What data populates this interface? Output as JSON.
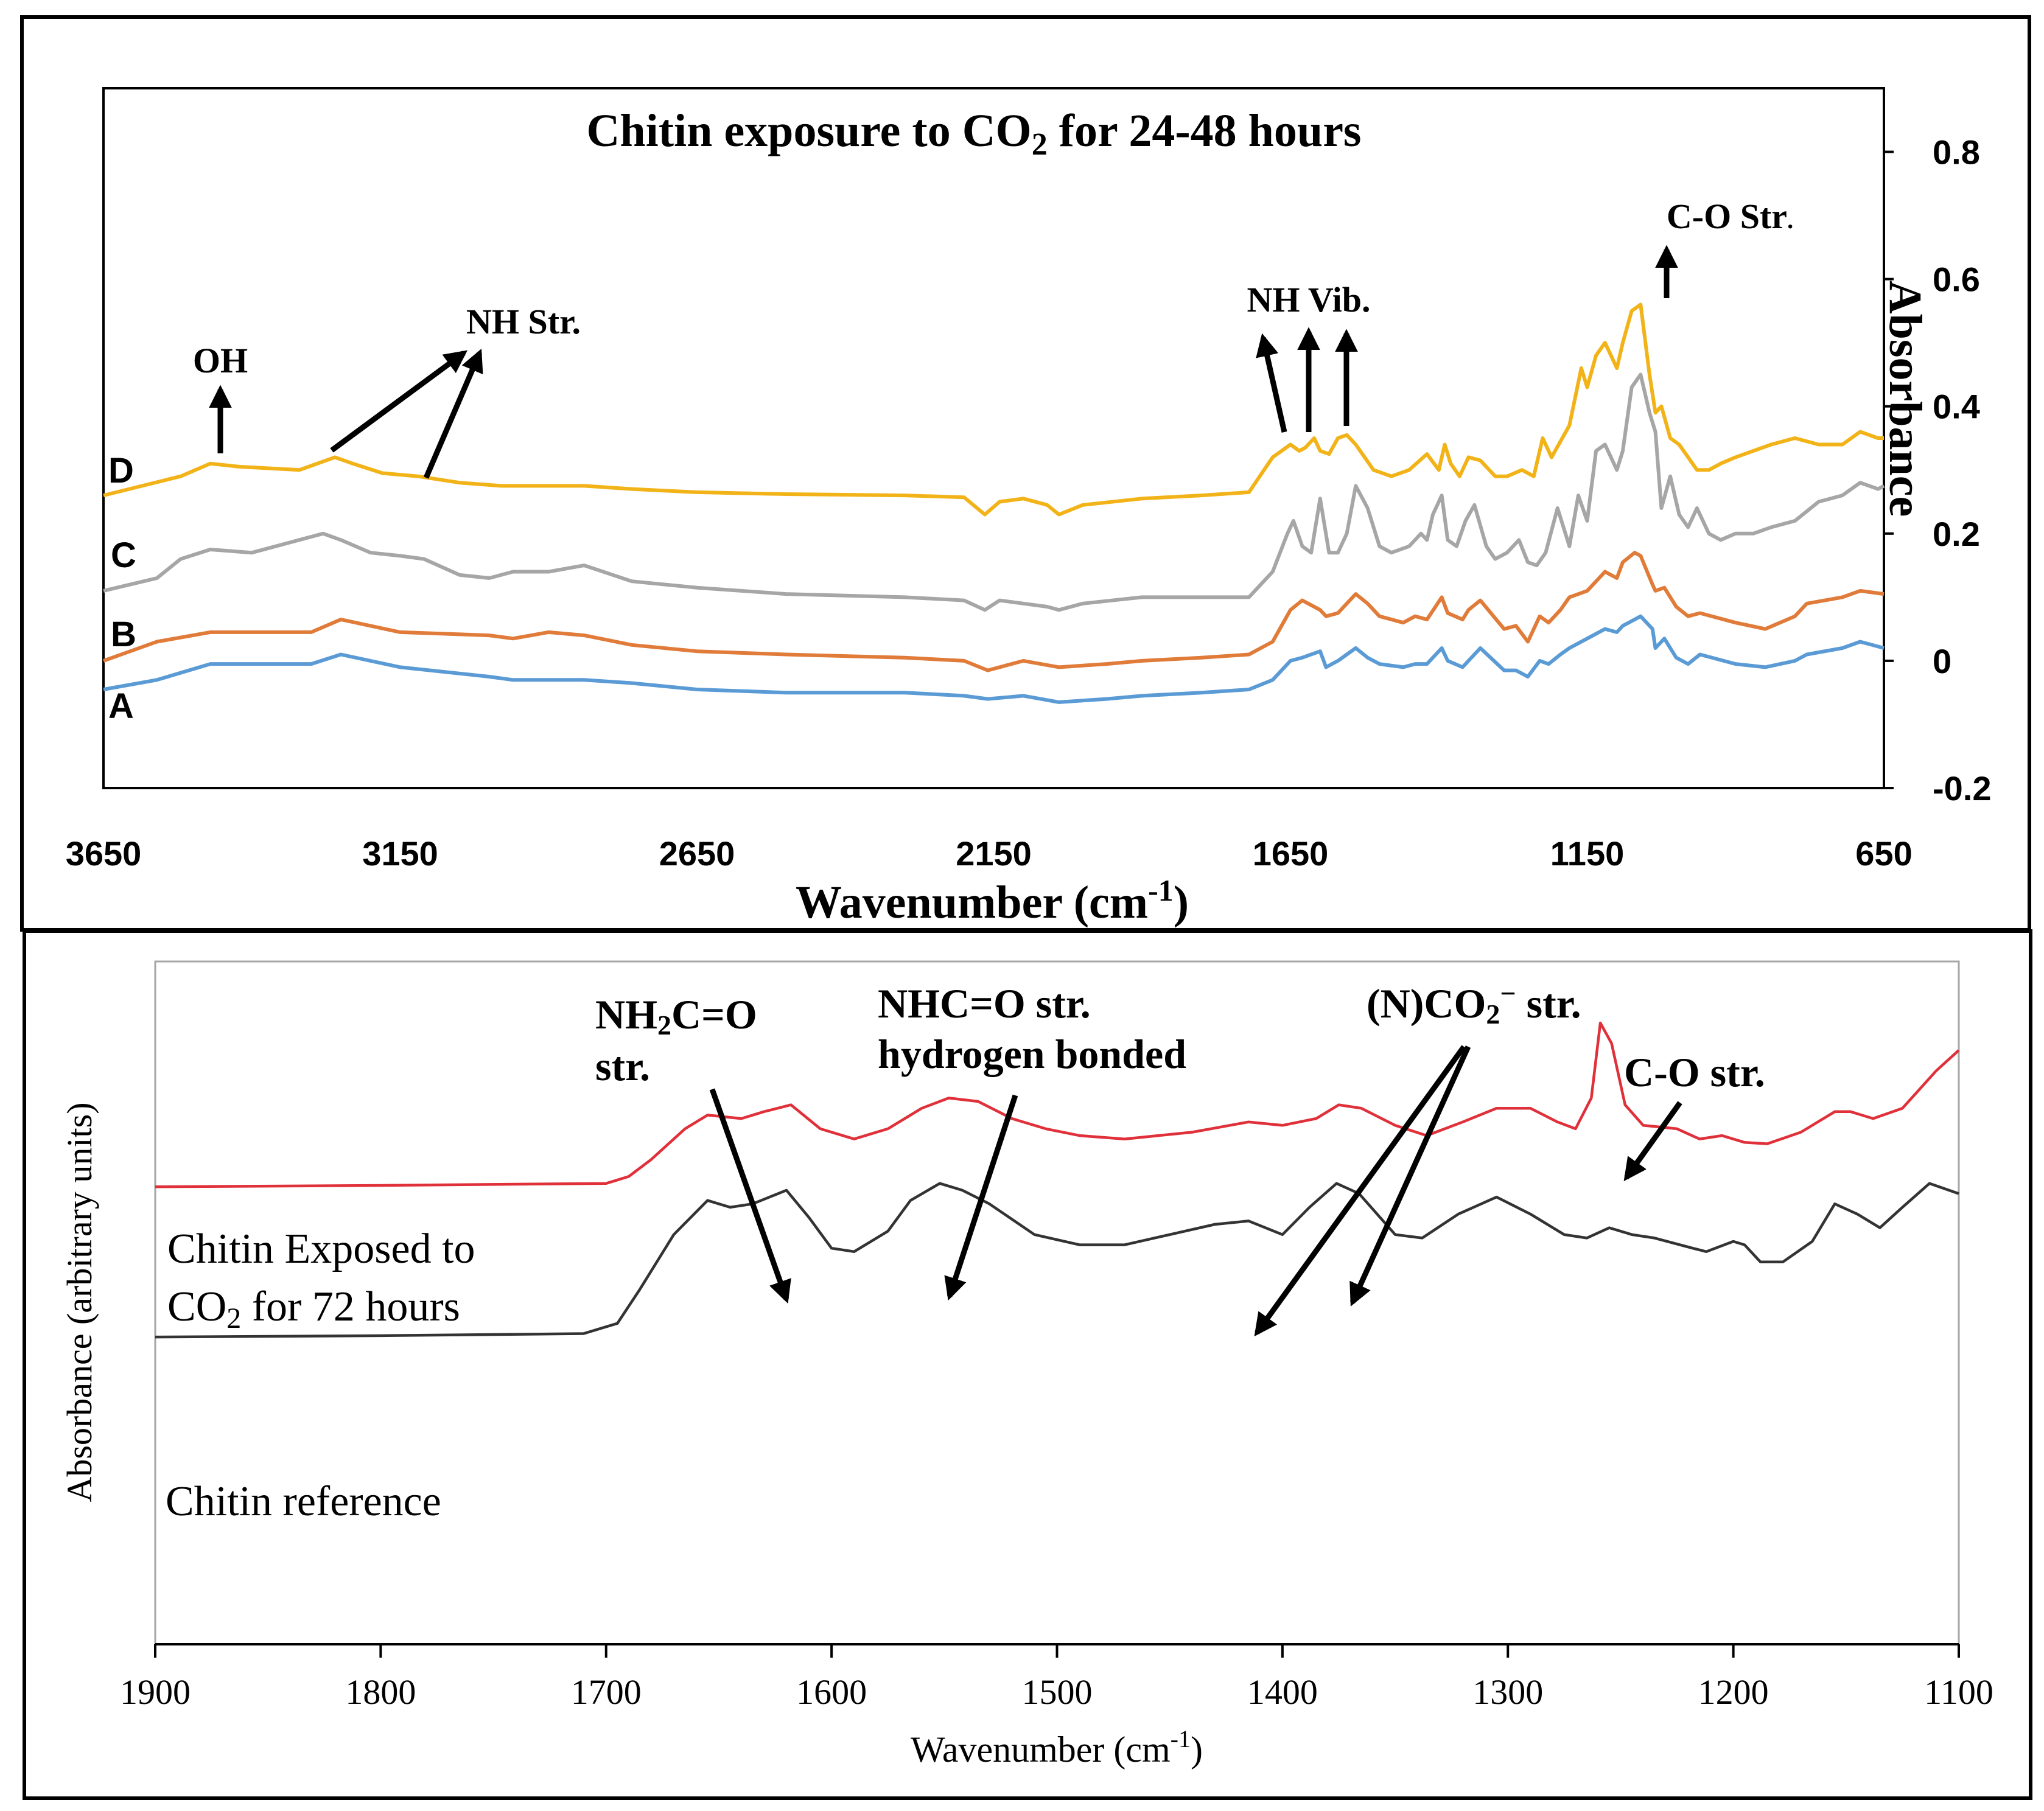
{
  "chart_data": [
    {
      "type": "line",
      "title_main": "Chitin exposure to CO",
      "title_sub": "2",
      "title_tail": " for 24-48 hours",
      "xlabel_main": "Wavenumber  (cm",
      "xlabel_sup": "-1",
      "xlabel_tail": ")",
      "ylabel": "Absorbance",
      "xlim": [
        3650,
        650
      ],
      "ylim": [
        -0.2,
        0.9
      ],
      "x_ticks": [
        "3650",
        "3150",
        "2650",
        "2150",
        "1650",
        "1150",
        "650"
      ],
      "y_ticks": [
        "0.8",
        "0.6",
        "0.4",
        "0.2",
        "0",
        "-0.2"
      ],
      "x_tick_values": [
        3650,
        3150,
        2650,
        2150,
        1650,
        1150,
        650
      ],
      "y_tick_values": [
        0.8,
        0.6,
        0.4,
        0.2,
        0,
        -0.2
      ],
      "annotations": [
        {
          "text": "OH",
          "x": 3465,
          "y": 0.425
        },
        {
          "text": "NH Str.",
          "x": 3010,
          "y": 0.535
        },
        {
          "text": "NH Vib.",
          "x": 1560,
          "y": 0.555
        },
        {
          "text": "C-O Str",
          "x": 1085,
          "y": 0.7
        },
        {
          "text": ".",
          "x": 975,
          "y": 0.7
        }
      ],
      "series": [
        {
          "name": "D",
          "color": "#F2B318",
          "x": [
            3650,
            3520,
            3470,
            3420,
            3320,
            3260,
            3230,
            3180,
            3120,
            3050,
            2980,
            2900,
            2840,
            2760,
            2650,
            2500,
            2300,
            2200,
            2165,
            2140,
            2100,
            2060,
            2040,
            2000,
            1900,
            1800,
            1720,
            1680,
            1650,
            1635,
            1625,
            1610,
            1600,
            1585,
            1570,
            1555,
            1540,
            1510,
            1480,
            1450,
            1420,
            1400,
            1390,
            1380,
            1365,
            1350,
            1330,
            1305,
            1285,
            1260,
            1240,
            1225,
            1210,
            1180,
            1160,
            1150,
            1135,
            1120,
            1100,
            1090,
            1075,
            1060,
            1045,
            1035,
            1025,
            1010,
            995,
            980,
            965,
            945,
            925,
            900,
            870,
            840,
            800,
            760,
            720,
            690,
            660,
            650
          ],
          "y": [
            0.26,
            0.29,
            0.31,
            0.305,
            0.3,
            0.32,
            0.31,
            0.295,
            0.29,
            0.28,
            0.275,
            0.275,
            0.275,
            0.27,
            0.265,
            0.262,
            0.26,
            0.257,
            0.23,
            0.25,
            0.255,
            0.245,
            0.23,
            0.245,
            0.255,
            0.26,
            0.265,
            0.32,
            0.34,
            0.33,
            0.335,
            0.35,
            0.33,
            0.325,
            0.35,
            0.355,
            0.34,
            0.3,
            0.29,
            0.3,
            0.325,
            0.3,
            0.34,
            0.31,
            0.29,
            0.32,
            0.315,
            0.29,
            0.29,
            0.3,
            0.29,
            0.35,
            0.32,
            0.37,
            0.46,
            0.43,
            0.48,
            0.5,
            0.46,
            0.5,
            0.55,
            0.56,
            0.45,
            0.39,
            0.4,
            0.35,
            0.34,
            0.32,
            0.3,
            0.3,
            0.31,
            0.32,
            0.33,
            0.34,
            0.35,
            0.34,
            0.34,
            0.36,
            0.35,
            0.35
          ]
        },
        {
          "name": "C",
          "color": "#A6A6A6",
          "x": [
            3650,
            3560,
            3520,
            3470,
            3400,
            3280,
            3250,
            3200,
            3150,
            3110,
            3050,
            3000,
            2960,
            2900,
            2840,
            2760,
            2650,
            2500,
            2300,
            2200,
            2165,
            2140,
            2100,
            2060,
            2040,
            2000,
            1900,
            1800,
            1720,
            1680,
            1655,
            1645,
            1630,
            1615,
            1600,
            1585,
            1570,
            1555,
            1540,
            1520,
            1500,
            1480,
            1450,
            1430,
            1420,
            1410,
            1395,
            1385,
            1370,
            1355,
            1340,
            1320,
            1305,
            1285,
            1265,
            1250,
            1235,
            1220,
            1200,
            1180,
            1165,
            1150,
            1135,
            1120,
            1100,
            1090,
            1075,
            1060,
            1045,
            1035,
            1025,
            1010,
            995,
            980,
            965,
            945,
            925,
            900,
            870,
            840,
            800,
            760,
            720,
            690,
            660,
            650
          ],
          "y": [
            0.11,
            0.13,
            0.16,
            0.175,
            0.17,
            0.2,
            0.19,
            0.17,
            0.165,
            0.16,
            0.135,
            0.13,
            0.14,
            0.14,
            0.15,
            0.125,
            0.115,
            0.105,
            0.1,
            0.095,
            0.08,
            0.095,
            0.09,
            0.085,
            0.08,
            0.09,
            0.1,
            0.1,
            0.1,
            0.14,
            0.2,
            0.22,
            0.18,
            0.17,
            0.255,
            0.17,
            0.17,
            0.2,
            0.275,
            0.24,
            0.18,
            0.17,
            0.18,
            0.2,
            0.19,
            0.23,
            0.26,
            0.19,
            0.18,
            0.22,
            0.245,
            0.18,
            0.16,
            0.17,
            0.19,
            0.155,
            0.15,
            0.17,
            0.24,
            0.18,
            0.26,
            0.22,
            0.33,
            0.34,
            0.3,
            0.33,
            0.43,
            0.45,
            0.39,
            0.36,
            0.24,
            0.29,
            0.23,
            0.21,
            0.24,
            0.2,
            0.19,
            0.2,
            0.2,
            0.21,
            0.22,
            0.25,
            0.26,
            0.28,
            0.27,
            0.275
          ]
        },
        {
          "name": "B",
          "color": "#E07B39",
          "x": [
            3650,
            3560,
            3470,
            3300,
            3250,
            3150,
            3000,
            2960,
            2900,
            2840,
            2760,
            2650,
            2500,
            2300,
            2200,
            2160,
            2100,
            2040,
            1960,
            1900,
            1800,
            1720,
            1680,
            1650,
            1630,
            1600,
            1590,
            1570,
            1555,
            1540,
            1520,
            1500,
            1460,
            1440,
            1420,
            1395,
            1385,
            1360,
            1350,
            1330,
            1290,
            1270,
            1250,
            1230,
            1215,
            1195,
            1180,
            1150,
            1120,
            1100,
            1090,
            1070,
            1060,
            1040,
            1035,
            1020,
            1000,
            980,
            960,
            900,
            850,
            800,
            780,
            720,
            690,
            650
          ],
          "y": [
            0.0,
            0.03,
            0.045,
            0.045,
            0.065,
            0.045,
            0.04,
            0.035,
            0.045,
            0.04,
            0.025,
            0.015,
            0.01,
            0.005,
            0.0,
            -0.015,
            0.0,
            -0.01,
            -0.005,
            0.0,
            0.005,
            0.01,
            0.03,
            0.08,
            0.095,
            0.08,
            0.07,
            0.075,
            0.09,
            0.105,
            0.09,
            0.07,
            0.06,
            0.07,
            0.065,
            0.1,
            0.075,
            0.065,
            0.08,
            0.095,
            0.05,
            0.055,
            0.03,
            0.07,
            0.06,
            0.08,
            0.1,
            0.11,
            0.14,
            0.13,
            0.155,
            0.17,
            0.165,
            0.12,
            0.11,
            0.115,
            0.085,
            0.07,
            0.075,
            0.06,
            0.05,
            0.07,
            0.09,
            0.1,
            0.11,
            0.105
          ]
        },
        {
          "name": "A",
          "color": "#5B9BD5",
          "x": [
            3650,
            3560,
            3470,
            3300,
            3250,
            3150,
            3000,
            2960,
            2900,
            2840,
            2760,
            2650,
            2500,
            2300,
            2200,
            2160,
            2100,
            2040,
            1960,
            1900,
            1800,
            1720,
            1680,
            1650,
            1630,
            1600,
            1590,
            1570,
            1555,
            1540,
            1520,
            1500,
            1460,
            1440,
            1420,
            1395,
            1385,
            1360,
            1350,
            1330,
            1290,
            1270,
            1250,
            1230,
            1215,
            1195,
            1180,
            1150,
            1120,
            1100,
            1090,
            1070,
            1060,
            1040,
            1035,
            1020,
            1000,
            980,
            960,
            900,
            850,
            800,
            780,
            720,
            690,
            650
          ],
          "y": [
            -0.045,
            -0.03,
            -0.005,
            -0.005,
            0.01,
            -0.01,
            -0.025,
            -0.03,
            -0.03,
            -0.03,
            -0.035,
            -0.045,
            -0.05,
            -0.05,
            -0.055,
            -0.06,
            -0.055,
            -0.065,
            -0.06,
            -0.055,
            -0.05,
            -0.045,
            -0.03,
            0.0,
            0.005,
            0.015,
            -0.01,
            0.0,
            0.01,
            0.02,
            0.005,
            -0.005,
            -0.01,
            -0.005,
            -0.005,
            0.02,
            0.0,
            -0.01,
            0.0,
            0.02,
            -0.015,
            -0.015,
            -0.025,
            0.0,
            -0.005,
            0.01,
            0.02,
            0.035,
            0.05,
            0.045,
            0.055,
            0.065,
            0.07,
            0.05,
            0.02,
            0.035,
            0.005,
            -0.005,
            0.01,
            -0.005,
            -0.01,
            0.0,
            0.01,
            0.02,
            0.03,
            0.02
          ]
        }
      ]
    },
    {
      "type": "line",
      "xlabel_main": "Wavenumber (cm",
      "xlabel_sup": "-1",
      "xlabel_tail": ")",
      "ylabel": "Absorbance (arbitrary units)",
      "xlim": [
        1900,
        1100
      ],
      "ylim": [
        0,
        1
      ],
      "x_ticks": [
        "1900",
        "1800",
        "1700",
        "1600",
        "1500",
        "1400",
        "1300",
        "1200",
        "1100"
      ],
      "x_tick_values": [
        1900,
        1800,
        1700,
        1600,
        1500,
        1400,
        1300,
        1200,
        1100
      ],
      "labels": [
        {
          "line1": "Chitin Exposed to",
          "line2_main": "CO",
          "line2_sub": "2",
          "line2_tail": " for 72 hours"
        },
        {
          "line1": "Chitin reference"
        }
      ],
      "annotations": [
        {
          "line1_a": "NH",
          "line1_sub": "2",
          "line1_b": "C=O",
          "line2": "str."
        },
        {
          "line1": "NHC=O str.",
          "line2": "hydrogen bonded"
        },
        {
          "text_a": "(N)CO",
          "text_sub": "2",
          "text_sup": "−",
          "text_b": " str."
        },
        {
          "text": "C-O str."
        }
      ],
      "series": [
        {
          "name": "Chitin Exposed to CO2 for 72 hours",
          "color": "#E0303A",
          "x": [
            1900,
            1800,
            1700,
            1690,
            1680,
            1665,
            1655,
            1640,
            1630,
            1618,
            1605,
            1590,
            1575,
            1560,
            1548,
            1535,
            1520,
            1505,
            1490,
            1470,
            1440,
            1415,
            1400,
            1385,
            1375,
            1365,
            1350,
            1336,
            1320,
            1305,
            1290,
            1278,
            1270,
            1263,
            1259,
            1254,
            1248,
            1240,
            1225,
            1215,
            1205,
            1195,
            1185,
            1170,
            1155,
            1148,
            1138,
            1125,
            1110,
            1100
          ],
          "y": [
            0.67,
            0.672,
            0.675,
            0.685,
            0.71,
            0.755,
            0.775,
            0.77,
            0.78,
            0.79,
            0.755,
            0.74,
            0.755,
            0.785,
            0.8,
            0.795,
            0.77,
            0.755,
            0.745,
            0.74,
            0.75,
            0.765,
            0.76,
            0.77,
            0.79,
            0.785,
            0.76,
            0.745,
            0.765,
            0.785,
            0.785,
            0.765,
            0.755,
            0.8,
            0.91,
            0.88,
            0.79,
            0.76,
            0.755,
            0.74,
            0.745,
            0.735,
            0.733,
            0.75,
            0.78,
            0.78,
            0.77,
            0.785,
            0.84,
            0.87
          ]
        },
        {
          "name": "Chitin reference",
          "color": "#333333",
          "x": [
            1900,
            1800,
            1710,
            1695,
            1685,
            1670,
            1655,
            1645,
            1635,
            1620,
            1610,
            1600,
            1590,
            1575,
            1565,
            1552,
            1542,
            1530,
            1510,
            1490,
            1470,
            1450,
            1430,
            1415,
            1400,
            1388,
            1376,
            1366,
            1350,
            1338,
            1322,
            1305,
            1290,
            1275,
            1265,
            1255,
            1245,
            1235,
            1218,
            1212,
            1200,
            1195,
            1188,
            1178,
            1165,
            1155,
            1145,
            1135,
            1125,
            1113,
            1100
          ],
          "y": [
            0.45,
            0.452,
            0.455,
            0.47,
            0.52,
            0.6,
            0.65,
            0.64,
            0.645,
            0.665,
            0.625,
            0.58,
            0.575,
            0.605,
            0.65,
            0.675,
            0.665,
            0.645,
            0.6,
            0.585,
            0.585,
            0.6,
            0.615,
            0.62,
            0.6,
            0.64,
            0.675,
            0.66,
            0.6,
            0.595,
            0.63,
            0.655,
            0.63,
            0.6,
            0.595,
            0.61,
            0.6,
            0.595,
            0.58,
            0.575,
            0.59,
            0.585,
            0.56,
            0.56,
            0.59,
            0.645,
            0.63,
            0.61,
            0.64,
            0.675,
            0.66
          ]
        }
      ]
    }
  ]
}
